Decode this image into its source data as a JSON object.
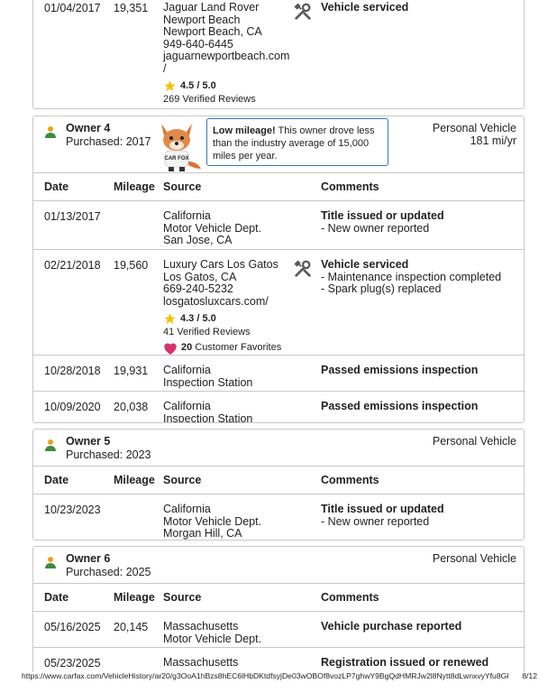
{
  "top_row": {
    "date": "01/04/2017",
    "mileage": "19,351",
    "source_lines": [
      "Jaguar Land Rover",
      "Newport Beach",
      "Newport Beach, CA",
      "949-640-6445",
      "jaguarnewportbeach.com",
      "/"
    ],
    "rating": "4.5 / 5.0",
    "reviews": "269 Verified Reviews",
    "comment_title": "Vehicle serviced"
  },
  "table_headers": {
    "date": "Date",
    "mileage": "Mileage",
    "source": "Source",
    "comments": "Comments"
  },
  "owner4": {
    "name": "Owner 4",
    "purchased": "Purchased: 2017",
    "type": "Personal Vehicle",
    "usage": "181 mi/yr",
    "callout_bold": "Low mileage!",
    "callout_text": " This owner drove less than the industry average of 15,000 miles per year.",
    "fox_text": "CAR FOX",
    "rows": [
      {
        "date": "01/13/2017",
        "mileage": "",
        "source_lines": [
          "California",
          "Motor Vehicle Dept.",
          "San Jose, CA"
        ],
        "comment_title": "Title issued or updated",
        "comment_items": [
          "- New owner reported"
        ]
      },
      {
        "date": "02/21/2018",
        "mileage": "19,560",
        "source_lines": [
          "Luxury Cars Los Gatos",
          "Los Gatos, CA",
          "669-240-5232",
          "losgatosluxcars.com/"
        ],
        "rating": "4.3 / 5.0",
        "reviews": "41 Verified Reviews",
        "favorites_count": "20",
        "favorites_label": "Customer Favorites",
        "comment_title": "Vehicle serviced",
        "comment_items": [
          "- Maintenance inspection completed",
          "- Spark plug(s) replaced"
        ]
      },
      {
        "date": "10/28/2018",
        "mileage": "19,931",
        "source_lines": [
          "California",
          "Inspection Station"
        ],
        "comment_title": "Passed emissions inspection"
      },
      {
        "date": "10/09/2020",
        "mileage": "20,038",
        "source_lines": [
          "California",
          "Inspection Station"
        ],
        "comment_title": "Passed emissions inspection"
      }
    ]
  },
  "owner5": {
    "name": "Owner 5",
    "purchased": "Purchased: 2023",
    "type": "Personal Vehicle",
    "rows": [
      {
        "date": "10/23/2023",
        "mileage": "",
        "source_lines": [
          "California",
          "Motor Vehicle Dept.",
          "Morgan Hill, CA"
        ],
        "comment_title": "Title issued or updated",
        "comment_items": [
          "- New owner reported"
        ]
      }
    ]
  },
  "owner6": {
    "name": "Owner 6",
    "purchased": "Purchased: 2025",
    "type": "Personal Vehicle",
    "rows": [
      {
        "date": "05/16/2025",
        "mileage": "20,145",
        "source_lines": [
          "Massachusetts",
          "Motor Vehicle Dept."
        ],
        "comment_title": "Vehicle purchase reported"
      },
      {
        "date": "05/23/2025",
        "mileage": "",
        "source_lines": [
          "Massachusetts"
        ],
        "comment_title": "Registration issued or renewed"
      }
    ]
  },
  "footer": {
    "url": "https://www.carfax.com/VehicleHistory/ar20/g3OoA1hBzs8hEC6lHbDKtdfsyjDe03wOBOf8vozLP7ghwY9BgQdHMRJw2l8Nytt8dLwnxvyYfu8GkT6LD...",
    "page": "8/12"
  },
  "colors": {
    "person_icon_head": "#e8a21a",
    "person_icon_body": "#3d8b3d",
    "callout_border": "#3777bc",
    "star": "#f4c20d",
    "heart": "#d6336c",
    "tool": "#5a5a5a"
  }
}
